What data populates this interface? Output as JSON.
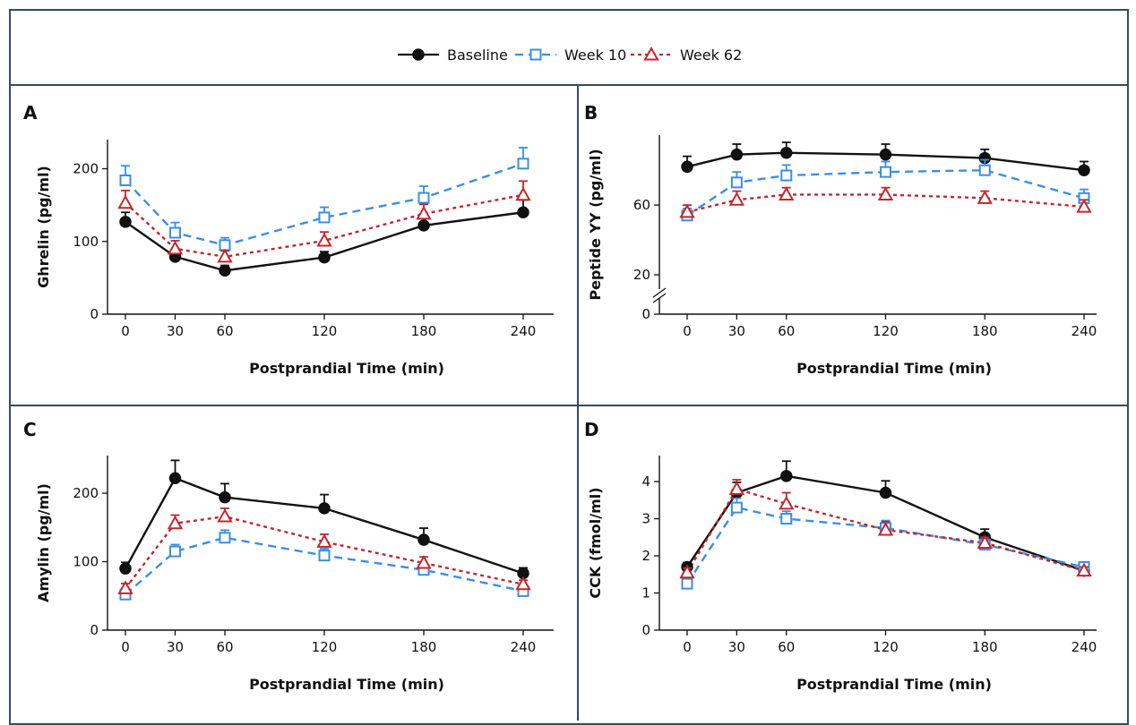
{
  "legend": {
    "items": [
      {
        "label": "Baseline",
        "color": "#111111",
        "marker": "circle",
        "dash": "solid"
      },
      {
        "label": "Week 10",
        "color": "#3a8ee6",
        "marker": "square",
        "dash": "dashed"
      },
      {
        "label": "Week 62",
        "color": "#c1272d",
        "marker": "triangle",
        "dash": "dotted"
      }
    ]
  },
  "chart_data": [
    {
      "panel": "A",
      "type": "line",
      "xlabel": "Postprandial Time (min)",
      "ylabel": "Ghrelin (pg/ml)",
      "x": [
        0,
        30,
        60,
        120,
        180,
        240
      ],
      "xticks": [
        "0",
        "30",
        "60",
        "120",
        "180",
        "240"
      ],
      "ylim": [
        0,
        240
      ],
      "yticks": [
        0,
        100,
        200
      ],
      "axis_break": false,
      "series": [
        {
          "name": "Baseline",
          "values": [
            127,
            79,
            60,
            78,
            122,
            140
          ],
          "err": [
            13,
            9,
            7,
            8,
            12,
            17
          ]
        },
        {
          "name": "Week 10",
          "values": [
            184,
            112,
            95,
            133,
            160,
            207
          ],
          "err": [
            20,
            14,
            10,
            14,
            16,
            22
          ]
        },
        {
          "name": "Week 62",
          "values": [
            153,
            90,
            79,
            101,
            138,
            164
          ],
          "err": [
            17,
            11,
            8,
            12,
            13,
            19
          ]
        }
      ]
    },
    {
      "panel": "B",
      "type": "line",
      "xlabel": "Postprandial Time (min)",
      "ylabel": "Peptide YY (pg/ml)",
      "x": [
        0,
        30,
        60,
        120,
        180,
        240
      ],
      "xticks": [
        "0",
        "30",
        "60",
        "120",
        "180",
        "240"
      ],
      "ylim": [
        0,
        100
      ],
      "yticks": [
        0,
        20,
        60
      ],
      "axis_break": true,
      "series": [
        {
          "name": "Baseline",
          "values": [
            82,
            89,
            90,
            89,
            87,
            80
          ],
          "err": [
            6,
            6,
            6,
            6,
            5,
            5
          ]
        },
        {
          "name": "Week 10",
          "values": [
            54,
            73,
            77,
            79,
            80,
            64
          ],
          "err": [
            4,
            6,
            6,
            6,
            6,
            5
          ]
        },
        {
          "name": "Week 62",
          "values": [
            56,
            63,
            66,
            66,
            64,
            59
          ],
          "err": [
            4,
            5,
            4,
            4,
            4,
            4
          ]
        }
      ]
    },
    {
      "panel": "C",
      "type": "line",
      "xlabel": "Postprandial Time (min)",
      "ylabel": "Amylin (pg/ml)",
      "x": [
        0,
        30,
        60,
        120,
        180,
        240
      ],
      "xticks": [
        "0",
        "30",
        "60",
        "120",
        "180",
        "240"
      ],
      "ylim": [
        0,
        255
      ],
      "yticks": [
        0,
        100,
        200
      ],
      "axis_break": false,
      "series": [
        {
          "name": "Baseline",
          "values": [
            90,
            222,
            194,
            178,
            132,
            83
          ],
          "err": [
            9,
            26,
            20,
            20,
            17,
            8
          ]
        },
        {
          "name": "Week 10",
          "values": [
            52,
            115,
            135,
            109,
            88,
            57
          ],
          "err": [
            6,
            10,
            11,
            10,
            8,
            5
          ]
        },
        {
          "name": "Week 62",
          "values": [
            61,
            156,
            166,
            129,
            98,
            67
          ],
          "err": [
            7,
            12,
            12,
            11,
            9,
            6
          ]
        }
      ]
    },
    {
      "panel": "D",
      "type": "line",
      "xlabel": "Postprandial Time (min)",
      "ylabel": "CCK (fmol/ml)",
      "x": [
        0,
        30,
        60,
        120,
        180,
        240
      ],
      "xticks": [
        "0",
        "30",
        "60",
        "120",
        "180",
        "240"
      ],
      "ylim": [
        0,
        4.7
      ],
      "yticks": [
        0,
        1,
        2,
        3,
        4
      ],
      "axis_break": false,
      "series": [
        {
          "name": "Baseline",
          "values": [
            1.7,
            3.7,
            4.15,
            3.7,
            2.5,
            1.6
          ],
          "err": [
            0.12,
            0.28,
            0.4,
            0.32,
            0.22,
            0.1
          ]
        },
        {
          "name": "Week 10",
          "values": [
            1.25,
            3.3,
            3.0,
            2.75,
            2.3,
            1.7
          ],
          "err": [
            0.12,
            0.25,
            0.2,
            0.2,
            0.15,
            0.1
          ]
        },
        {
          "name": "Week 62",
          "values": [
            1.55,
            3.8,
            3.4,
            2.7,
            2.35,
            1.6
          ],
          "err": [
            0.12,
            0.25,
            0.3,
            0.22,
            0.15,
            0.1
          ]
        }
      ]
    }
  ]
}
